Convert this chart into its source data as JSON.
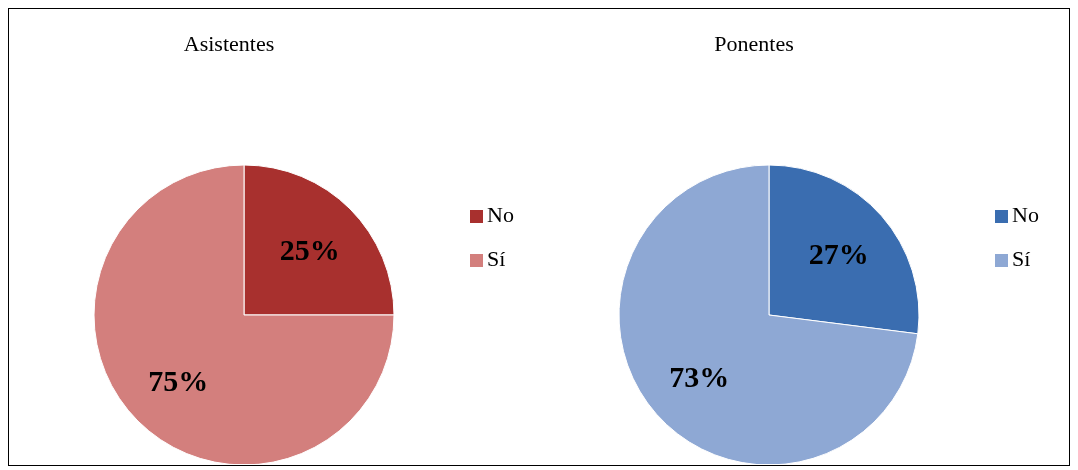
{
  "chart_data": [
    {
      "type": "pie",
      "title": "Asistentes",
      "categories": [
        "No",
        "Sí"
      ],
      "values": [
        25,
        75
      ],
      "colors": [
        "#a8302e",
        "#d37f7d"
      ],
      "value_labels": [
        "25%",
        "75%"
      ],
      "legend": "right"
    },
    {
      "type": "pie",
      "title": "Ponentes",
      "categories": [
        "No",
        "Sí"
      ],
      "values": [
        27,
        73
      ],
      "colors": [
        "#3a6db0",
        "#8ea8d4"
      ],
      "value_labels": [
        "27%",
        "73%"
      ],
      "legend": "right"
    }
  ]
}
